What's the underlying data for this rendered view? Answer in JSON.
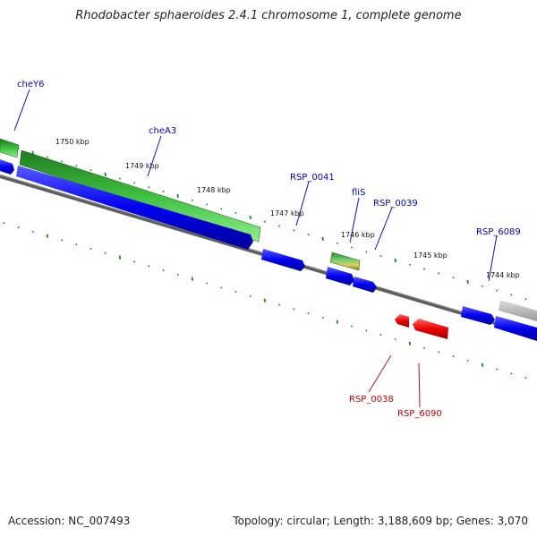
{
  "title": "Rhodobacter sphaeroides 2.4.1 chromosome 1, complete genome",
  "footer": {
    "accession": "Accession: NC_007493",
    "summary": "Topology: circular; Length: 3,188,609 bp; Genes: 3,070"
  },
  "colors": {
    "forward_gene": "#0a0af0",
    "reverse_gene": "#e80000",
    "rna_gene": "#30b030",
    "pseudo_gene": "#b8b8b8",
    "forward_label": "#0000cc",
    "reverse_label": "#cc0000",
    "ticks": "#1a8a1a",
    "backbone": "#777777"
  },
  "kbp_ticks": [
    "1750 kbp",
    "1749 kbp",
    "1748 kbp",
    "1747 kbp",
    "1746 kbp",
    "1745 kbp",
    "1744 kbp"
  ],
  "gene_labels": {
    "forward": [
      "cheY6",
      "cheA3",
      "RSP_0041",
      "fliS",
      "RSP_0039",
      "RSP_6089"
    ],
    "reverse": [
      "RSP_0038",
      "RSP_6090"
    ]
  }
}
